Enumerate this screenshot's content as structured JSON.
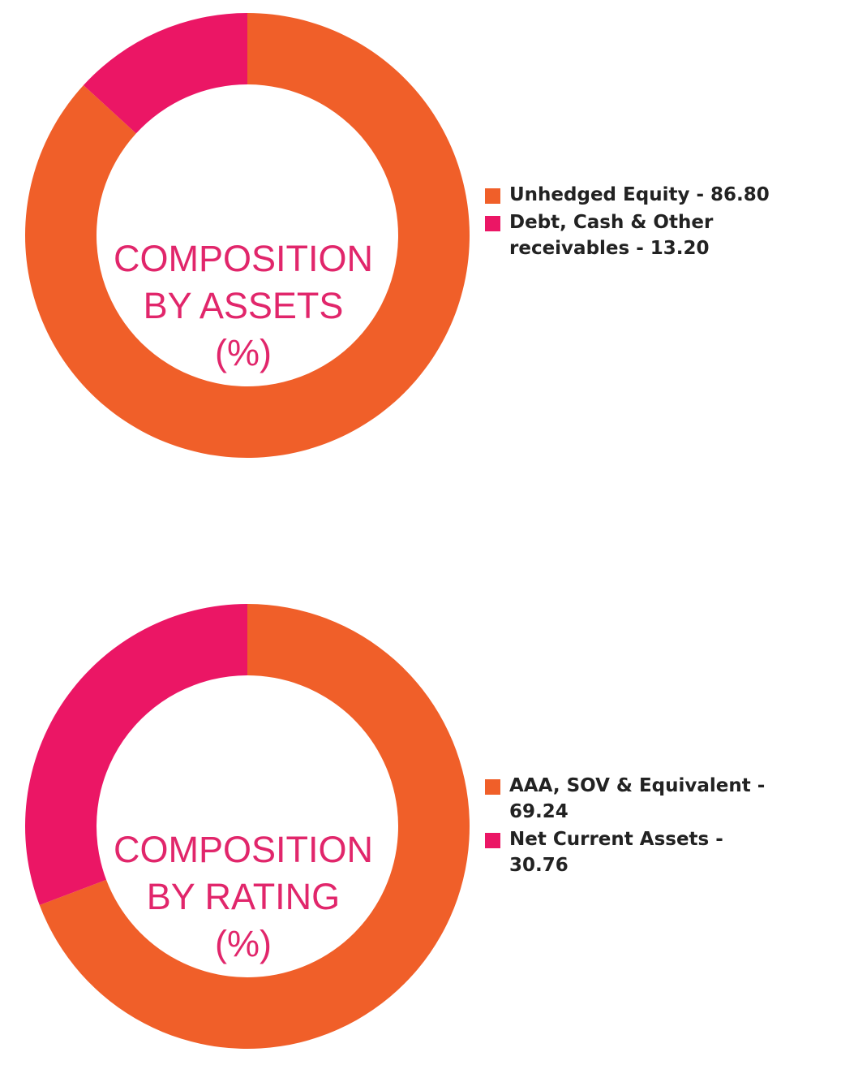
{
  "colors": {
    "orange": "#f05f29",
    "pink": "#eb1665",
    "label": "#e1266b",
    "text": "#222222"
  },
  "chart_data": [
    {
      "type": "pie",
      "title": [
        "COMPOSITION",
        "BY ASSETS",
        "(%)"
      ],
      "series": [
        {
          "name": "Unhedged Equity",
          "value": 86.8,
          "color": "#f05f29"
        },
        {
          "name": "Debt, Cash & Other receivables",
          "value": 13.2,
          "color": "#eb1665"
        }
      ],
      "legend": [
        "Unhedged Equity - 86.80",
        "Debt, Cash & Other receivables - 13.20"
      ],
      "legend_position": "right"
    },
    {
      "type": "pie",
      "title": [
        "COMPOSITION",
        "BY RATING",
        "(%)"
      ],
      "series": [
        {
          "name": "AAA, SOV & Equivalent",
          "value": 69.24,
          "color": "#f05f29"
        },
        {
          "name": "Net Current Assets",
          "value": 30.76,
          "color": "#eb1665"
        }
      ],
      "legend": [
        "AAA, SOV & Equivalent - 69.24",
        "Net Current Assets - 30.76"
      ],
      "legend_position": "right"
    }
  ]
}
